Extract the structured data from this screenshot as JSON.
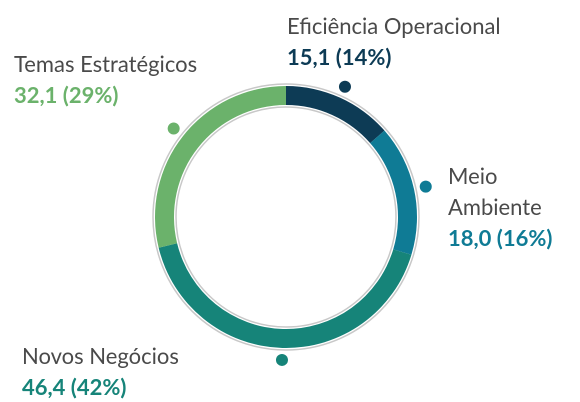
{
  "chart_data": {
    "type": "pie",
    "donut": true,
    "categories": [
      "Eficiência Operacional",
      "Meio Ambiente",
      "Novos Negócios",
      "Temas Estratégicos"
    ],
    "values": [
      15.1,
      18.0,
      46.4,
      32.1
    ],
    "value_labels": [
      "15,1 (14%)",
      "18,0 (16%)",
      "46,4 (42%)",
      "32,1 (29%)"
    ],
    "colors": [
      "#0d3b55",
      "#0f7b95",
      "#168479",
      "#6bb26b"
    ]
  }
}
